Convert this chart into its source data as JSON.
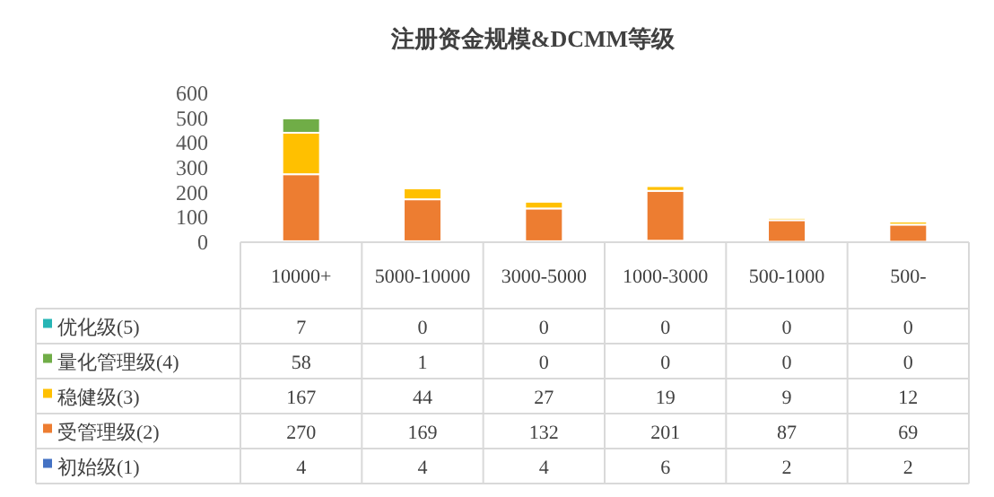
{
  "chart_data": {
    "type": "bar",
    "title": "注册资金规模&DCMM等级",
    "categories": [
      "10000+",
      "5000-10000",
      "3000-5000",
      "1000-3000",
      "500-1000",
      "500-"
    ],
    "series": [
      {
        "name": "初始级(1)",
        "color": "#4472c4",
        "values": [
          4,
          4,
          4,
          6,
          2,
          2
        ]
      },
      {
        "name": "受管理级(2)",
        "color": "#ed7d31",
        "values": [
          270,
          169,
          132,
          201,
          87,
          69
        ]
      },
      {
        "name": "稳健级(3)",
        "color": "#ffc000",
        "values": [
          167,
          44,
          27,
          19,
          9,
          12
        ]
      },
      {
        "name": "量化管理级(4)",
        "color": "#70ad47",
        "values": [
          58,
          1,
          0,
          0,
          0,
          0
        ]
      },
      {
        "name": "优化级(5)",
        "color": "#26b5b5",
        "values": [
          7,
          0,
          0,
          0,
          0,
          0
        ]
      }
    ],
    "stacked": true,
    "ylim": [
      0,
      600
    ],
    "yticks": [
      0,
      100,
      200,
      300,
      400,
      500,
      600
    ],
    "grid": false,
    "legend": "bottom",
    "data_labels": true
  }
}
